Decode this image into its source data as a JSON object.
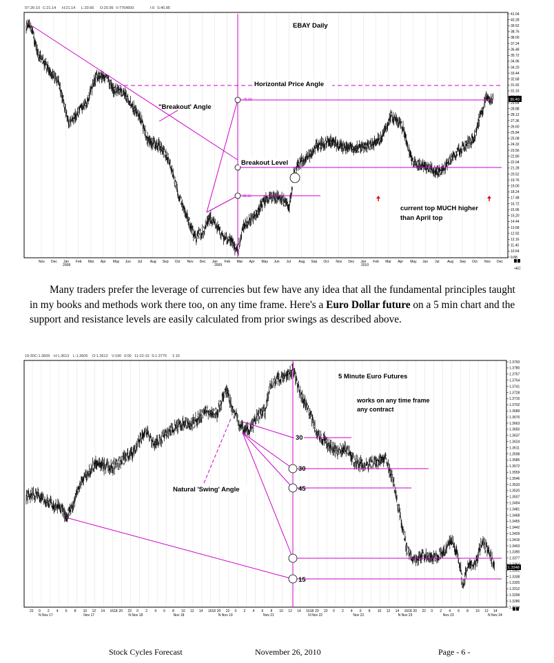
{
  "chart1": {
    "header": {
      "date": "07-26-10",
      "close": "C:21.14",
      "high": "H:21.14",
      "low": "L:20.66",
      "open": "O:20.95",
      "volume": "V:7764500",
      "oi": "I:0",
      "settle": "S:40.85"
    },
    "title": "EBAY Daily",
    "labels": {
      "horizontal": "Horizontal Price Angle",
      "breakout_angle": "\"Breakout' Angle",
      "breakout_level": "Breakout Level",
      "note_line1": "current top MUCH higher",
      "note_line2": "than April top",
      "angle_marker_top": "45.00",
      "angle_marker_low": "30.15"
    },
    "y_ticks": [
      "41.04",
      "40.28",
      "39.52",
      "38.76",
      "38.00",
      "37.24",
      "36.48",
      "35.72",
      "34.96",
      "34.20",
      "33.44",
      "32.68",
      "31.92",
      "31.16",
      "30.40",
      "29.64",
      "28.88",
      "28.12",
      "27.36",
      "26.60",
      "25.84",
      "25.08",
      "24.32",
      "23.56",
      "22.80",
      "22.04",
      "21.28",
      "20.52",
      "19.76",
      "19.00",
      "18.24",
      "17.48",
      "16.72",
      "15.96",
      "15.20",
      "14.44",
      "13.68",
      "12.92",
      "12.16",
      "11.40",
      "10.64",
      "9.88"
    ],
    "price_tag": "30.40",
    "x_months": [
      "Nov",
      "Dec",
      "Jan",
      "Feb",
      "Mar",
      "Apr",
      "May",
      "Jun",
      "Jul",
      "Aug",
      "Sep",
      "Oct",
      "Nov",
      "Dec",
      "Jan",
      "Feb",
      "Mar",
      "Apr",
      "May",
      "Jun",
      "Jul",
      "Aug",
      "Sep",
      "Oct",
      "Nov",
      "Dec",
      "Jan",
      "Feb",
      "Mar",
      "Apr",
      "May",
      "Jun",
      "Jul",
      "Aug",
      "Sep",
      "Oct",
      "Nov",
      "Dec"
    ],
    "x_years": [
      "2008",
      "2009",
      "2010"
    ],
    "corner": "+EC"
  },
  "paragraph": {
    "part1": "Many traders prefer the leverage of currencies but few have any idea that all the fundamental principles taught in my books and methods work there too, on any time frame. Here's a ",
    "bold": "Euro Dollar future",
    "part2": " on a 5 min chart and the support and resistance levels are easily calculated from prior swings as described above."
  },
  "chart2": {
    "header": {
      "time": "19:30",
      "close": "C:1.3609",
      "high": "H:1.3613",
      "low": "L:1.3605",
      "open": "O:1.3612",
      "volume": "V:190",
      "oi": "0:00",
      "date": "11-22-10",
      "settle": "S:1.3775",
      "interval": "1:10"
    },
    "title": "5 Minute Euro Futures",
    "note_line1": "works on any time frame",
    "note_line2": "any contract",
    "swing_label": "Natural 'Swing' Angle",
    "angle_labels": [
      "30",
      "30",
      "45",
      "15"
    ],
    "y_ticks": [
      "1.3793",
      "1.3780",
      "1.3767",
      "1.3754",
      "1.3741",
      "1.3728",
      "1.3715",
      "1.3702",
      "1.3689",
      "1.3676",
      "1.3663",
      "1.3650",
      "1.3637",
      "1.3624",
      "1.3611",
      "1.3598",
      "1.3585",
      "1.3572",
      "1.3559",
      "1.3546",
      "1.3533",
      "1.3520",
      "1.3507",
      "1.3494",
      "1.3481",
      "1.3468",
      "1.3455",
      "1.3442",
      "1.3429",
      "1.3416",
      "1.3403",
      "1.3390",
      "1.3377",
      "1.3364",
      "1.3351",
      "1.3338",
      "1.3325",
      "1.3312",
      "1.3299",
      "1.3286",
      "1.3273"
    ],
    "price_tag": "1.3348",
    "x_hours": [
      "22",
      "0",
      "2",
      "4",
      "6",
      "8",
      "10",
      "12",
      "14",
      "1618",
      "20",
      "22",
      "0",
      "2",
      "4",
      "6",
      "8",
      "10",
      "12",
      "14",
      "1618",
      "20",
      "22",
      "0",
      "2",
      "4",
      "6",
      "8",
      "10",
      "12",
      "14",
      "1618",
      "20",
      "22",
      "0",
      "2",
      "4",
      "6",
      "8",
      "10",
      "12",
      "14",
      "1618",
      "20",
      "22",
      "0",
      "2",
      "4",
      "6",
      "8",
      "10",
      "12",
      "14"
    ],
    "x_days": [
      "N Nov 17",
      "Nov 17",
      "N Nov 18",
      "Nov 18",
      "N Nov 19",
      "Nov 21",
      "N Nov 22",
      "Nov 22",
      "N Nov 23",
      "Nov 23",
      "N Nov 24"
    ]
  },
  "footer": {
    "left": "Stock Cycles Forecast",
    "center": "November 26, 2010",
    "right": "Page - 6 -"
  },
  "colors": {
    "magenta": "#cc00cc",
    "ink": "#000000"
  }
}
